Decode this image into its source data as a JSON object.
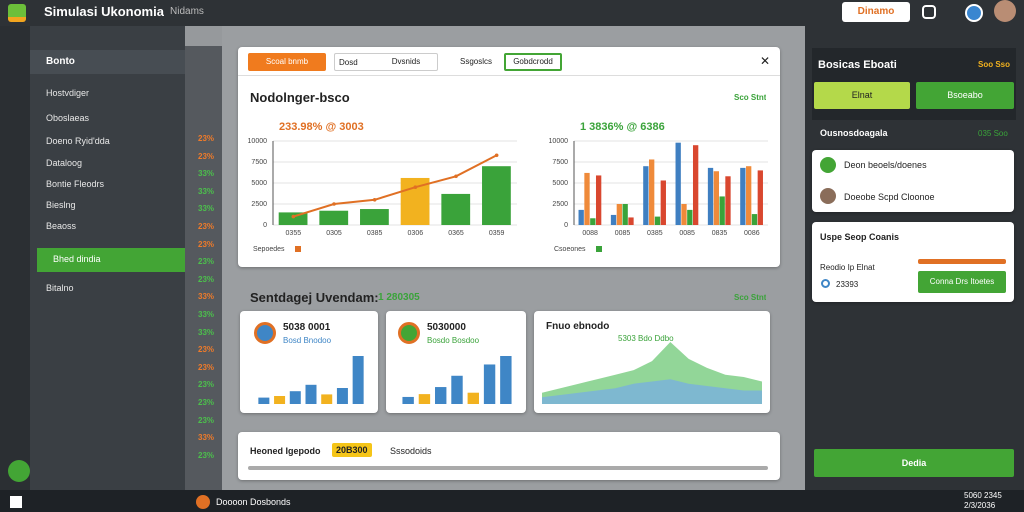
{
  "app": {
    "title": "Simulasi Ukonomia",
    "subtitle": "Nidams",
    "action": "Dinamo"
  },
  "sidebar": {
    "header": "Bonto",
    "items": [
      "Hostvdiger",
      "Oboslaeas",
      "Doeno Ryid'dda",
      "Dataloog",
      "Bontie Fleodrs",
      "Bieslng",
      "Beaoss",
      "Bhed dindia",
      "Bitalno"
    ],
    "active": 7
  },
  "rates": [
    {
      "text": "23%",
      "color": "#f07b2a"
    },
    {
      "text": "23%",
      "color": "#f07b2a"
    },
    {
      "text": "33%",
      "color": "#4cc04c"
    },
    {
      "text": "33%",
      "color": "#4cc04c"
    },
    {
      "text": "33%",
      "color": "#4cc04c"
    },
    {
      "text": "23%",
      "color": "#f07b2a"
    },
    {
      "text": "23%",
      "color": "#f07b2a"
    },
    {
      "text": "23%",
      "color": "#4cc04c"
    },
    {
      "text": "23%",
      "color": "#4cc04c"
    },
    {
      "text": "33%",
      "color": "#f07b2a"
    },
    {
      "text": "33%",
      "color": "#4cc04c"
    },
    {
      "text": "33%",
      "color": "#4cc04c"
    },
    {
      "text": "23%",
      "color": "#f07b2a"
    },
    {
      "text": "23%",
      "color": "#f07b2a"
    },
    {
      "text": "23%",
      "color": "#4cc04c"
    },
    {
      "text": "23%",
      "color": "#4cc04c"
    },
    {
      "text": "23%",
      "color": "#4cc04c"
    },
    {
      "text": "33%",
      "color": "#f07b2a"
    },
    {
      "text": "23%",
      "color": "#4cc04c"
    }
  ],
  "main": {
    "tabs": {
      "labels": [
        "Scoal bnmb",
        "Dosd",
        "Dvsnids",
        "Ssgoslcs",
        "Gobdcrodd"
      ],
      "active": 0,
      "outlined": 4
    },
    "chart1": {
      "type": "bar",
      "title": "Nodolnger-bsco",
      "link": "Sco Stnt",
      "annotation": "233.98% @ 3003",
      "categories": [
        "0355",
        "0305",
        "0385",
        "0306",
        "0365",
        "0359"
      ],
      "ylim": [
        0,
        10000
      ],
      "yticks": [
        0,
        2500,
        5000,
        7500,
        10000
      ],
      "series": [
        {
          "type": "bar",
          "colors": [
            "#3aa33a",
            "#3aa33a",
            "#3aa33a",
            "#f2b21f",
            "#3aa33a",
            "#3aa33a"
          ],
          "values": [
            1500,
            1700,
            1900,
            5600,
            3700,
            7000
          ]
        },
        {
          "type": "line",
          "name": "Sepoedes",
          "color": "#e07024",
          "values": [
            1000,
            2500,
            3000,
            4500,
            5800,
            8300
          ]
        }
      ]
    },
    "chart2": {
      "type": "bar",
      "annotation": "1 3836% @ 6386",
      "categories": [
        "0088",
        "0085",
        "0385",
        "0085",
        "0835",
        "0086"
      ],
      "ylim": [
        0,
        10000
      ],
      "yticks": [
        0,
        2500,
        5000,
        7500,
        10000
      ],
      "series": [
        {
          "type": "bar",
          "color": "#3f7fc1",
          "values": [
            1800,
            1200,
            7000,
            9800,
            6800,
            6800
          ]
        },
        {
          "type": "bar",
          "color": "#ef8a3a",
          "values": [
            6200,
            2500,
            7800,
            2500,
            6400,
            7000
          ]
        },
        {
          "type": "bar",
          "name": "Csoeones",
          "color": "#3aa33a",
          "values": [
            800,
            2500,
            1000,
            1800,
            3400,
            1300
          ]
        },
        {
          "type": "bar",
          "color": "#d9472f",
          "values": [
            5900,
            900,
            5300,
            9500,
            5800,
            6500
          ]
        }
      ]
    },
    "section": {
      "title": "Sentdagej Uvendam:",
      "badge": "1 280305",
      "link": "Sco Stnt"
    },
    "card1": {
      "type": "bar",
      "value": "5038 0001",
      "sub": "Bosd Bnodoo",
      "color": "#3f86c6",
      "values": [
        4,
        5,
        8,
        12,
        6,
        10,
        30
      ]
    },
    "card2": {
      "type": "bar",
      "value": "5030000",
      "sub": "Bosdo Bosdoo",
      "color": "#3f86c6",
      "values": [
        5,
        7,
        12,
        20,
        8,
        28,
        34
      ]
    },
    "card3": {
      "type": "area",
      "title": "Fnuo ebnodo",
      "sub": "5303 Bdo Ddbo",
      "series": [
        {
          "color": "#7fcf86",
          "values": [
            10,
            14,
            18,
            22,
            26,
            30,
            38,
            55,
            40,
            32,
            26,
            24,
            20
          ]
        },
        {
          "color": "#7ab3d9",
          "values": [
            6,
            8,
            10,
            12,
            14,
            18,
            20,
            22,
            18,
            16,
            14,
            12,
            12
          ]
        }
      ]
    },
    "footer": {
      "title": "Heoned Igepodo",
      "badge": "20B300",
      "label": "Sssodoids"
    }
  },
  "right": {
    "title": "Bosicas Eboati",
    "link": "Soo Sso",
    "button1": "Elnat",
    "button2": "Bsoeabo",
    "section": "Ousnosdoagala",
    "section_link": "035 Soo",
    "rows": [
      "Deon beoels/doenes",
      "Doeobe Scpd Cloonoe"
    ],
    "card": {
      "title": "Uspe Seop Coanis",
      "label": "Reodio Ip Elnat",
      "value": "23393",
      "button": "Conna Drs Itoetes"
    },
    "bottom": "Dedia"
  },
  "taskbar": {
    "app": "Doooon Dosbonds",
    "time": "5060 2345",
    "date": "2/3/2036"
  }
}
